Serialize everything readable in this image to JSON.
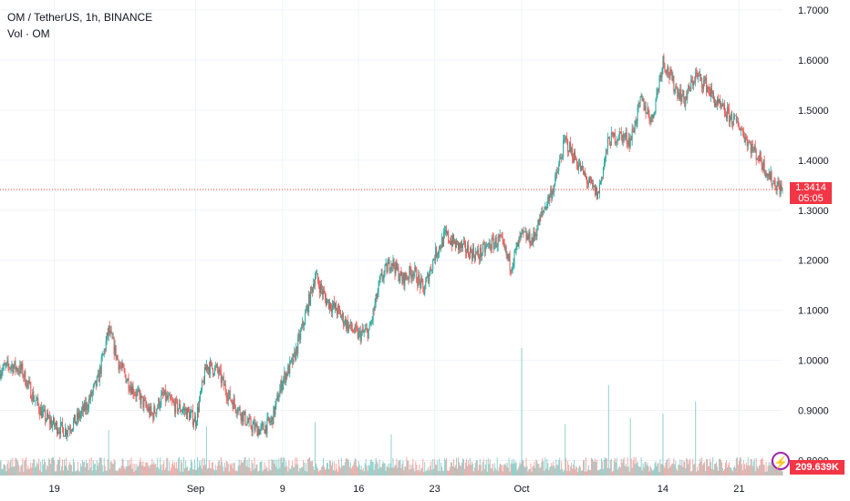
{
  "header": {
    "title": "OM / TetherUS, 1h, BINANCE",
    "volume_label": "Vol · OM"
  },
  "last_price": {
    "value": "1.3414",
    "countdown": "05:05"
  },
  "volume_badge": "209.639K",
  "icons": {
    "alert": "lightning-bolt-icon"
  },
  "colors": {
    "up": "#26a69a",
    "down": "#ef5350",
    "price_line": "#f23645",
    "grid": "#f0f3fa"
  },
  "chart_data": {
    "type": "candlestick",
    "symbol": "OM / TetherUS",
    "interval": "1h",
    "exchange": "BINANCE",
    "yaxis": {
      "ticks": [
        "1.7000",
        "1.6000",
        "1.5000",
        "1.4000",
        "1.3000",
        "1.2000",
        "1.1000",
        "1.0000",
        "0.9000",
        "0.8000"
      ],
      "range": [
        0.77,
        1.72
      ]
    },
    "xaxis": {
      "ticks": [
        {
          "label": "19",
          "date": "2024-08-19"
        },
        {
          "label": "Sep",
          "date": "2024-09-01"
        },
        {
          "label": "9",
          "date": "2024-09-09"
        },
        {
          "label": "16",
          "date": "2024-09-16"
        },
        {
          "label": "23",
          "date": "2024-09-23"
        },
        {
          "label": "Oct",
          "date": "2024-10-01"
        },
        {
          "label": "14",
          "date": "2024-10-14"
        },
        {
          "label": "21",
          "date": "2024-10-21"
        }
      ],
      "range": [
        "2024-08-14",
        "2024-10-25"
      ]
    },
    "price_path": [
      [
        "2024-08-14",
        0.98
      ],
      [
        "2024-08-15",
        0.99
      ],
      [
        "2024-08-16",
        0.98
      ],
      [
        "2024-08-17",
        0.93
      ],
      [
        "2024-08-18",
        0.89
      ],
      [
        "2024-08-19",
        0.87
      ],
      [
        "2024-08-20",
        0.86
      ],
      [
        "2024-08-21",
        0.88
      ],
      [
        "2024-08-22",
        0.91
      ],
      [
        "2024-08-23",
        0.96
      ],
      [
        "2024-08-24",
        1.06
      ],
      [
        "2024-08-25",
        0.99
      ],
      [
        "2024-08-26",
        0.95
      ],
      [
        "2024-08-27",
        0.92
      ],
      [
        "2024-08-28",
        0.89
      ],
      [
        "2024-08-29",
        0.93
      ],
      [
        "2024-08-30",
        0.91
      ],
      [
        "2024-08-31",
        0.9
      ],
      [
        "2024-09-01",
        0.88
      ],
      [
        "2024-09-02",
        0.99
      ],
      [
        "2024-09-03",
        0.98
      ],
      [
        "2024-09-04",
        0.93
      ],
      [
        "2024-09-05",
        0.9
      ],
      [
        "2024-09-06",
        0.87
      ],
      [
        "2024-09-07",
        0.86
      ],
      [
        "2024-09-08",
        0.88
      ],
      [
        "2024-09-09",
        0.96
      ],
      [
        "2024-09-10",
        1.0
      ],
      [
        "2024-09-11",
        1.08
      ],
      [
        "2024-09-12",
        1.17
      ],
      [
        "2024-09-13",
        1.12
      ],
      [
        "2024-09-14",
        1.1
      ],
      [
        "2024-09-15",
        1.07
      ],
      [
        "2024-09-16",
        1.05
      ],
      [
        "2024-09-17",
        1.06
      ],
      [
        "2024-09-18",
        1.16
      ],
      [
        "2024-09-19",
        1.2
      ],
      [
        "2024-09-20",
        1.16
      ],
      [
        "2024-09-21",
        1.18
      ],
      [
        "2024-09-22",
        1.14
      ],
      [
        "2024-09-23",
        1.21
      ],
      [
        "2024-09-24",
        1.25
      ],
      [
        "2024-09-25",
        1.23
      ],
      [
        "2024-09-26",
        1.22
      ],
      [
        "2024-09-27",
        1.21
      ],
      [
        "2024-09-28",
        1.23
      ],
      [
        "2024-09-29",
        1.24
      ],
      [
        "2024-09-30",
        1.19
      ],
      [
        "2024-10-01",
        1.25
      ],
      [
        "2024-10-02",
        1.24
      ],
      [
        "2024-10-03",
        1.3
      ],
      [
        "2024-10-04",
        1.35
      ],
      [
        "2024-10-05",
        1.44
      ],
      [
        "2024-10-06",
        1.4
      ],
      [
        "2024-10-07",
        1.36
      ],
      [
        "2024-10-08",
        1.33
      ],
      [
        "2024-10-09",
        1.44
      ],
      [
        "2024-10-10",
        1.45
      ],
      [
        "2024-10-11",
        1.44
      ],
      [
        "2024-10-12",
        1.52
      ],
      [
        "2024-10-13",
        1.48
      ],
      [
        "2024-10-14",
        1.6
      ],
      [
        "2024-10-15",
        1.55
      ],
      [
        "2024-10-16",
        1.52
      ],
      [
        "2024-10-17",
        1.57
      ],
      [
        "2024-10-18",
        1.55
      ],
      [
        "2024-10-19",
        1.51
      ],
      [
        "2024-10-20",
        1.49
      ],
      [
        "2024-10-21",
        1.47
      ],
      [
        "2024-10-22",
        1.43
      ],
      [
        "2024-10-23",
        1.4
      ],
      [
        "2024-10-24",
        1.36
      ],
      [
        "2024-10-25",
        1.34
      ]
    ],
    "volume": {
      "typical_k": 60,
      "max_k": 620,
      "spikes": [
        [
          "2024-10-01",
          620
        ],
        [
          "2024-10-09",
          440
        ],
        [
          "2024-10-14",
          300
        ],
        [
          "2024-10-17",
          360
        ],
        [
          "2024-10-11",
          280
        ],
        [
          "2024-09-12",
          260
        ],
        [
          "2024-09-02",
          240
        ],
        [
          "2024-08-24",
          220
        ],
        [
          "2024-10-05",
          250
        ],
        [
          "2024-09-19",
          200
        ]
      ]
    }
  }
}
